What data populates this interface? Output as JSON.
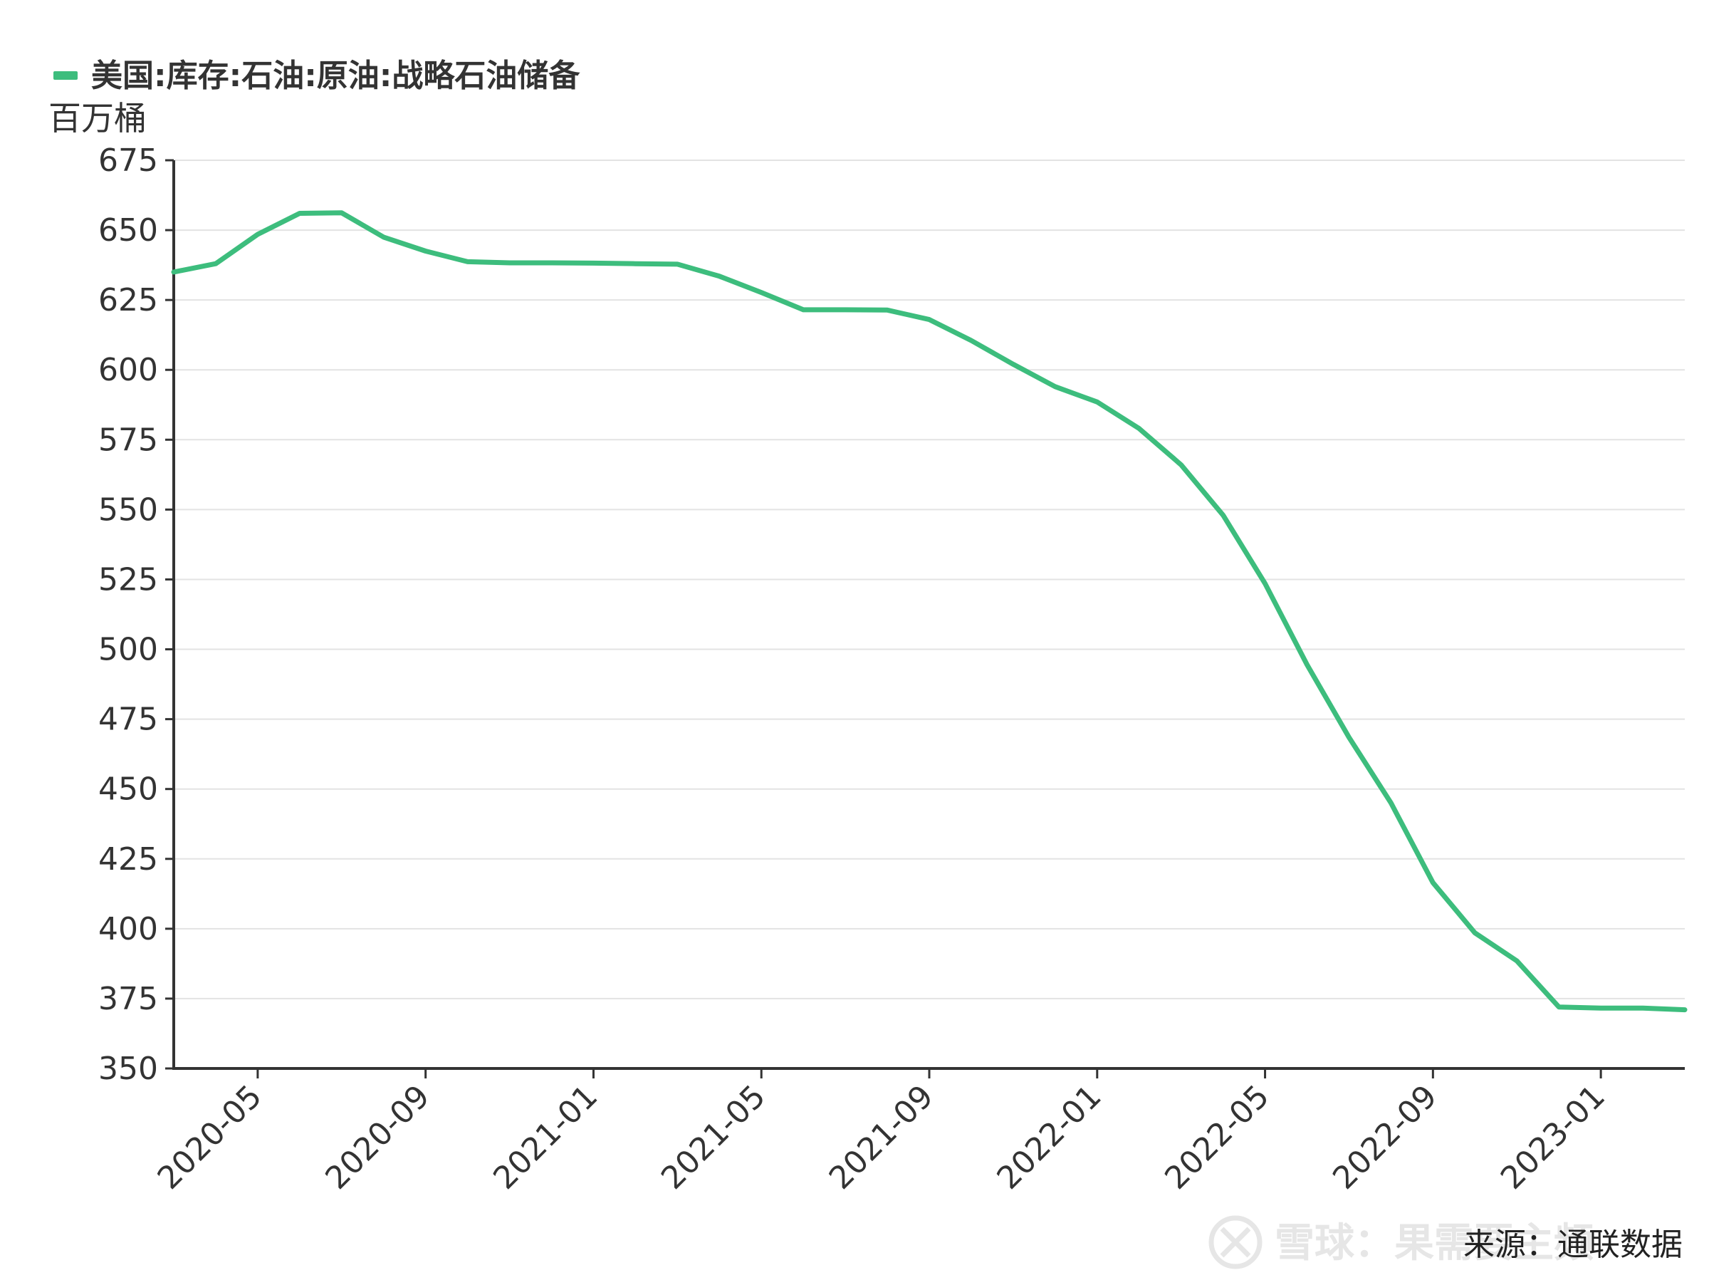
{
  "chart_data": {
    "type": "line",
    "legend": {
      "placement": "top-left"
    },
    "unit_label": "百万桶",
    "series": [
      {
        "name": "美国:库存:石油:原油:战略石油储备",
        "color": "#3dbd7d",
        "points": [
          [
            "2020-03",
            635.0
          ],
          [
            "2020-04",
            638.0
          ],
          [
            "2020-05",
            648.5
          ],
          [
            "2020-06",
            656.0
          ],
          [
            "2020-07",
            656.2
          ],
          [
            "2020-08",
            647.5
          ],
          [
            "2020-09",
            642.5
          ],
          [
            "2020-10",
            638.7
          ],
          [
            "2020-11",
            638.3
          ],
          [
            "2020-12",
            638.3
          ],
          [
            "2021-01",
            638.2
          ],
          [
            "2021-02",
            638.0
          ],
          [
            "2021-03",
            637.8
          ],
          [
            "2021-04",
            633.5
          ],
          [
            "2021-05",
            627.7
          ],
          [
            "2021-06",
            621.5
          ],
          [
            "2021-07",
            621.5
          ],
          [
            "2021-08",
            621.4
          ],
          [
            "2021-09",
            618.0
          ],
          [
            "2021-10",
            610.5
          ],
          [
            "2021-11",
            602.0
          ],
          [
            "2021-12",
            594.0
          ],
          [
            "2022-01",
            588.5
          ],
          [
            "2022-02",
            579.0
          ],
          [
            "2022-03",
            566.0
          ],
          [
            "2022-04",
            548.0
          ],
          [
            "2022-05",
            523.5
          ],
          [
            "2022-06",
            494.5
          ],
          [
            "2022-07",
            468.5
          ],
          [
            "2022-08",
            445.0
          ],
          [
            "2022-09",
            416.5
          ],
          [
            "2022-10",
            398.5
          ],
          [
            "2022-11",
            388.5
          ],
          [
            "2022-12",
            372.0
          ],
          [
            "2023-01",
            371.6
          ],
          [
            "2023-02",
            371.6
          ],
          [
            "2023-03",
            371.0
          ]
        ]
      }
    ],
    "x_range": [
      "2020-03",
      "2023-03"
    ],
    "x_ticks": [
      "2020-05",
      "2020-09",
      "2021-01",
      "2021-05",
      "2021-09",
      "2022-01",
      "2022-05",
      "2022-09",
      "2023-01"
    ],
    "y_range": [
      350,
      675
    ],
    "y_ticks": [
      350,
      375,
      400,
      425,
      450,
      475,
      500,
      525,
      550,
      575,
      600,
      625,
      650,
      675
    ],
    "grid": {
      "horizontal": true,
      "vertical": false
    }
  },
  "source": {
    "text": "来源：通联数据"
  },
  "watermark": {
    "text": "雪球：果需要主频"
  }
}
